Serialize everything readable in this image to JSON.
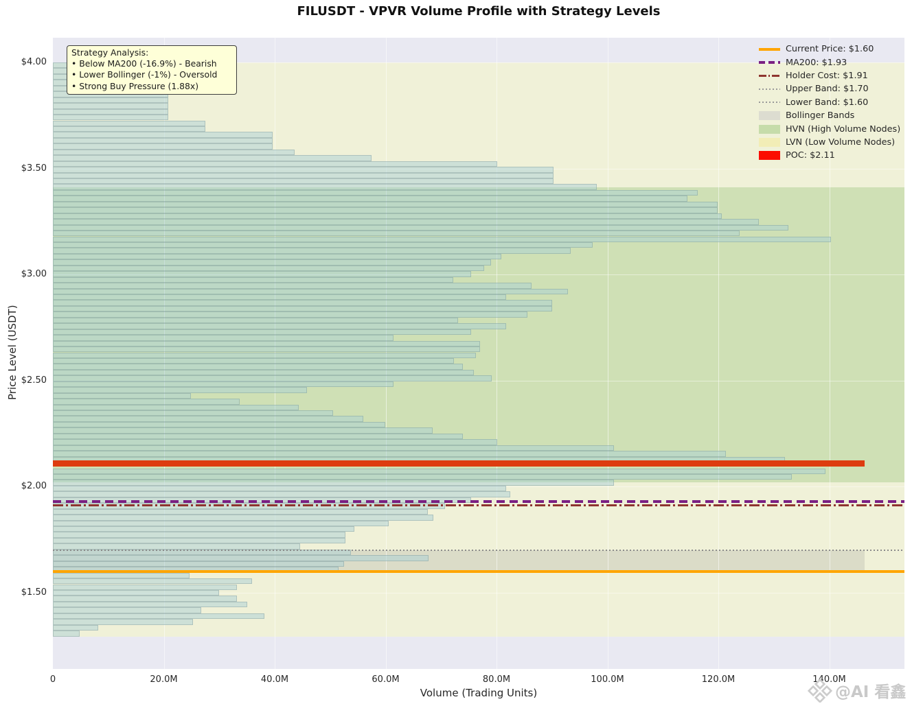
{
  "title": "FILUSDT - VPVR Volume Profile with Strategy Levels",
  "axes": {
    "y_label": "Price Level (USDT)",
    "x_label": "Volume (Trading Units)",
    "y_ticks": [
      "$4.00",
      "$3.50",
      "$3.00",
      "$2.50",
      "$2.00",
      "$1.50"
    ],
    "y_tick_prices": [
      4.0,
      3.5,
      3.0,
      2.5,
      2.0,
      1.5
    ],
    "x_ticks": [
      "0",
      "20.0M",
      "40.0M",
      "60.0M",
      "80.0M",
      "100.0M",
      "120.0M",
      "140.0M"
    ],
    "x_tick_values": [
      0,
      20,
      40,
      60,
      80,
      100,
      120,
      140
    ]
  },
  "annotation": {
    "title": "Strategy Analysis:",
    "lines": [
      "• Below MA200 (-16.9%) - Bearish",
      "• Lower Bollinger (-1%) - Oversold",
      "• Strong Buy Pressure (1.88x)"
    ]
  },
  "legend": [
    {
      "label": "Current Price: $1.60",
      "type": "solid",
      "color": "#FFA500"
    },
    {
      "label": "MA200: $1.93",
      "type": "dashed",
      "color": "#7a1f82"
    },
    {
      "label": "Holder Cost: $1.91",
      "type": "dashdot",
      "color": "#8e352f"
    },
    {
      "label": "Upper Band: $1.70",
      "type": "dotted",
      "color": "#999999"
    },
    {
      "label": "Lower Band: $1.60",
      "type": "dotted",
      "color": "#999999"
    },
    {
      "label": "Bollinger Bands",
      "type": "patch",
      "color": "#dcdcd0"
    },
    {
      "label": "HVN (High Volume Nodes)",
      "type": "patch",
      "color": "#c6dcaa"
    },
    {
      "label": "LVN (Low Volume Nodes)",
      "type": "patch",
      "color": "#f2edb6"
    },
    {
      "label": "POC: $2.11",
      "type": "patch",
      "color": "#fb0d00"
    }
  ],
  "watermark": "@AI 看鑫",
  "colors": {
    "plot_bg": "#e9e9f2",
    "lvn_band": "#f0f1d8",
    "hvn_band": "#cfe0b5",
    "bollinger_band": "rgba(128,128,128,0.18)",
    "bar_fill": "rgba(170,207,213,0.5)",
    "bar_edge": "rgba(88,118,122,0.28)",
    "poc_bar": "#dd3c10",
    "current_price_line": "#FFA500",
    "ma200_line": "#7a1f82",
    "holder_cost_line": "#8e352f",
    "band_line": "#8a8a8a"
  },
  "chart_data": {
    "type": "bar",
    "orientation": "horizontal volume profile",
    "title": "FILUSDT - VPVR Volume Profile with Strategy Levels",
    "xlabel": "Volume (Trading Units)",
    "ylabel": "Price Level (USDT)",
    "xlim_m": [
      0,
      153.6
    ],
    "ylim": [
      1.14,
      4.12
    ],
    "price_bin_size": 0.02735,
    "price_bin_top": 4.0,
    "volumes_m": [
      20.8,
      20.8,
      20.8,
      20.8,
      20.8,
      20.8,
      20.8,
      20.8,
      20.8,
      20.8,
      27.5,
      27.5,
      39.6,
      39.6,
      39.6,
      43.6,
      57.5,
      80.1,
      90.3,
      90.3,
      90.3,
      98.1,
      116.3,
      114.4,
      119.9,
      119.9,
      120.6,
      127.3,
      132.6,
      123.8,
      140.3,
      97.3,
      93.4,
      80.9,
      79.0,
      77.8,
      75.4,
      72.2,
      86.3,
      92.9,
      81.7,
      90.0,
      90.0,
      85.6,
      73.1,
      81.7,
      75.4,
      61.4,
      77.0,
      77.0,
      76.3,
      72.3,
      73.9,
      75.9,
      79.1,
      61.4,
      45.8,
      24.9,
      33.7,
      44.3,
      50.5,
      56.0,
      59.9,
      68.5,
      73.9,
      80.1,
      101.2,
      121.4,
      132.0,
      146.4,
      139.3,
      133.3,
      101.2,
      81.7,
      82.5,
      75.4,
      70.7,
      67.6,
      68.6,
      60.5,
      54.4,
      52.8,
      52.8,
      44.6,
      53.7,
      67.7,
      52.5,
      51.5,
      24.7,
      35.9,
      33.2,
      30.0,
      33.2,
      35.1,
      26.7,
      38.1,
      25.3,
      8.2,
      4.8
    ],
    "poc": {
      "price": 2.11,
      "volume_m": 146.4,
      "bin_index": 69
    },
    "levels": {
      "current_price": 1.6,
      "ma200": 1.93,
      "holder_cost": 1.91,
      "upper_band": 1.7,
      "lower_band": 1.6
    },
    "hvn_price_range": [
      2.02,
      3.41
    ],
    "lvn_price_ranges": [
      [
        3.41,
        4.0
      ],
      [
        1.29,
        2.02
      ]
    ],
    "bollinger_range": [
      1.6,
      1.7
    ]
  }
}
